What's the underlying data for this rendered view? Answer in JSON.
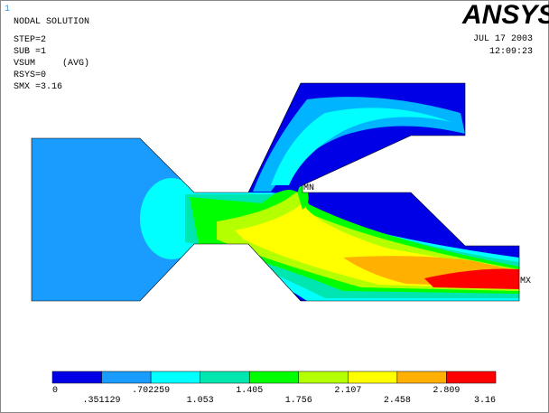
{
  "header": {
    "frame_number": "1",
    "title": "NODAL SOLUTION",
    "lines": [
      "STEP=2",
      "SUB =1",
      "VSUM     (AVG)",
      "RSYS=0",
      "SMX =3.16"
    ]
  },
  "logo": "ANSYS",
  "date": "JUL 17 2003",
  "time": "12:09:23",
  "markers": {
    "min": "MN",
    "max": "MX"
  },
  "legend": {
    "labels": [
      "0",
      ".351129",
      ".702259",
      "1.053",
      "1.405",
      "1.756",
      "2.107",
      "2.458",
      "2.809",
      "3.16"
    ]
  }
}
